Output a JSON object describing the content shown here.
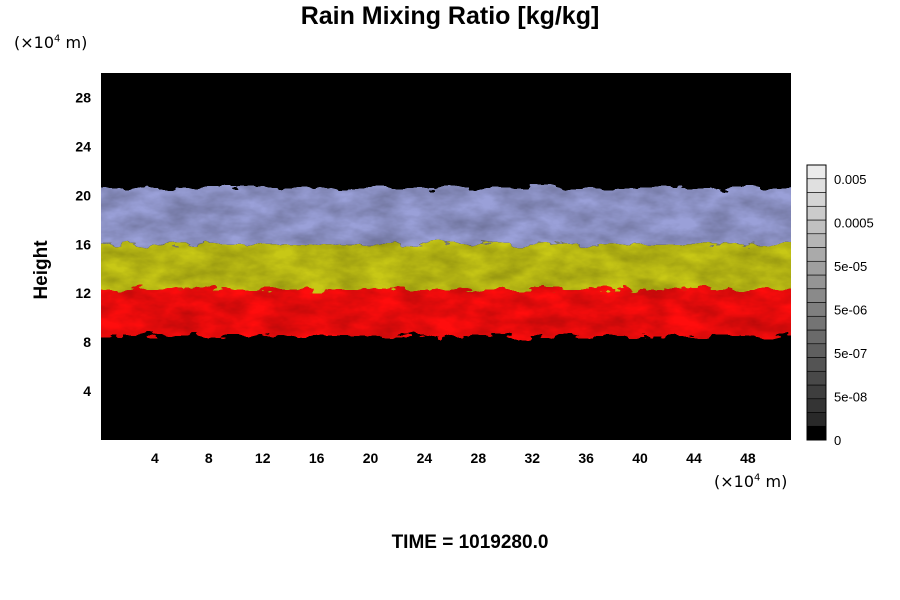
{
  "chart_data": {
    "type": "heatmap",
    "title": "Rain Mixing Ratio [kg/kg]",
    "ylabel": "Height",
    "xlabel": "",
    "x_unit": {
      "prefix": "(×10",
      "exp": "4",
      "suffix": " m)"
    },
    "y_unit": {
      "prefix": "(×10",
      "exp": "4",
      "suffix": " m)"
    },
    "xlim": [
      0,
      51.2
    ],
    "ylim": [
      0,
      30
    ],
    "x_ticks": [
      4,
      8,
      12,
      16,
      20,
      24,
      28,
      32,
      36,
      40,
      44,
      48
    ],
    "y_ticks": [
      4,
      8,
      12,
      16,
      20,
      24,
      28
    ],
    "layers": [
      {
        "name": "red",
        "color": "#ff1010",
        "bottom": 8.5,
        "top": 12.3
      },
      {
        "name": "yellow",
        "color": "#c8c818",
        "bottom": 12.3,
        "top": 16.0
      },
      {
        "name": "lavender",
        "color": "#9aa0d8",
        "bottom": 16.0,
        "top": 20.6
      }
    ],
    "colorbar": {
      "labels": [
        "0.005",
        "0.0005",
        "5e-05",
        "5e-06",
        "5e-07",
        "5e-08",
        "0"
      ],
      "levels": 20
    },
    "time_label": "TIME = 1019280.0"
  }
}
